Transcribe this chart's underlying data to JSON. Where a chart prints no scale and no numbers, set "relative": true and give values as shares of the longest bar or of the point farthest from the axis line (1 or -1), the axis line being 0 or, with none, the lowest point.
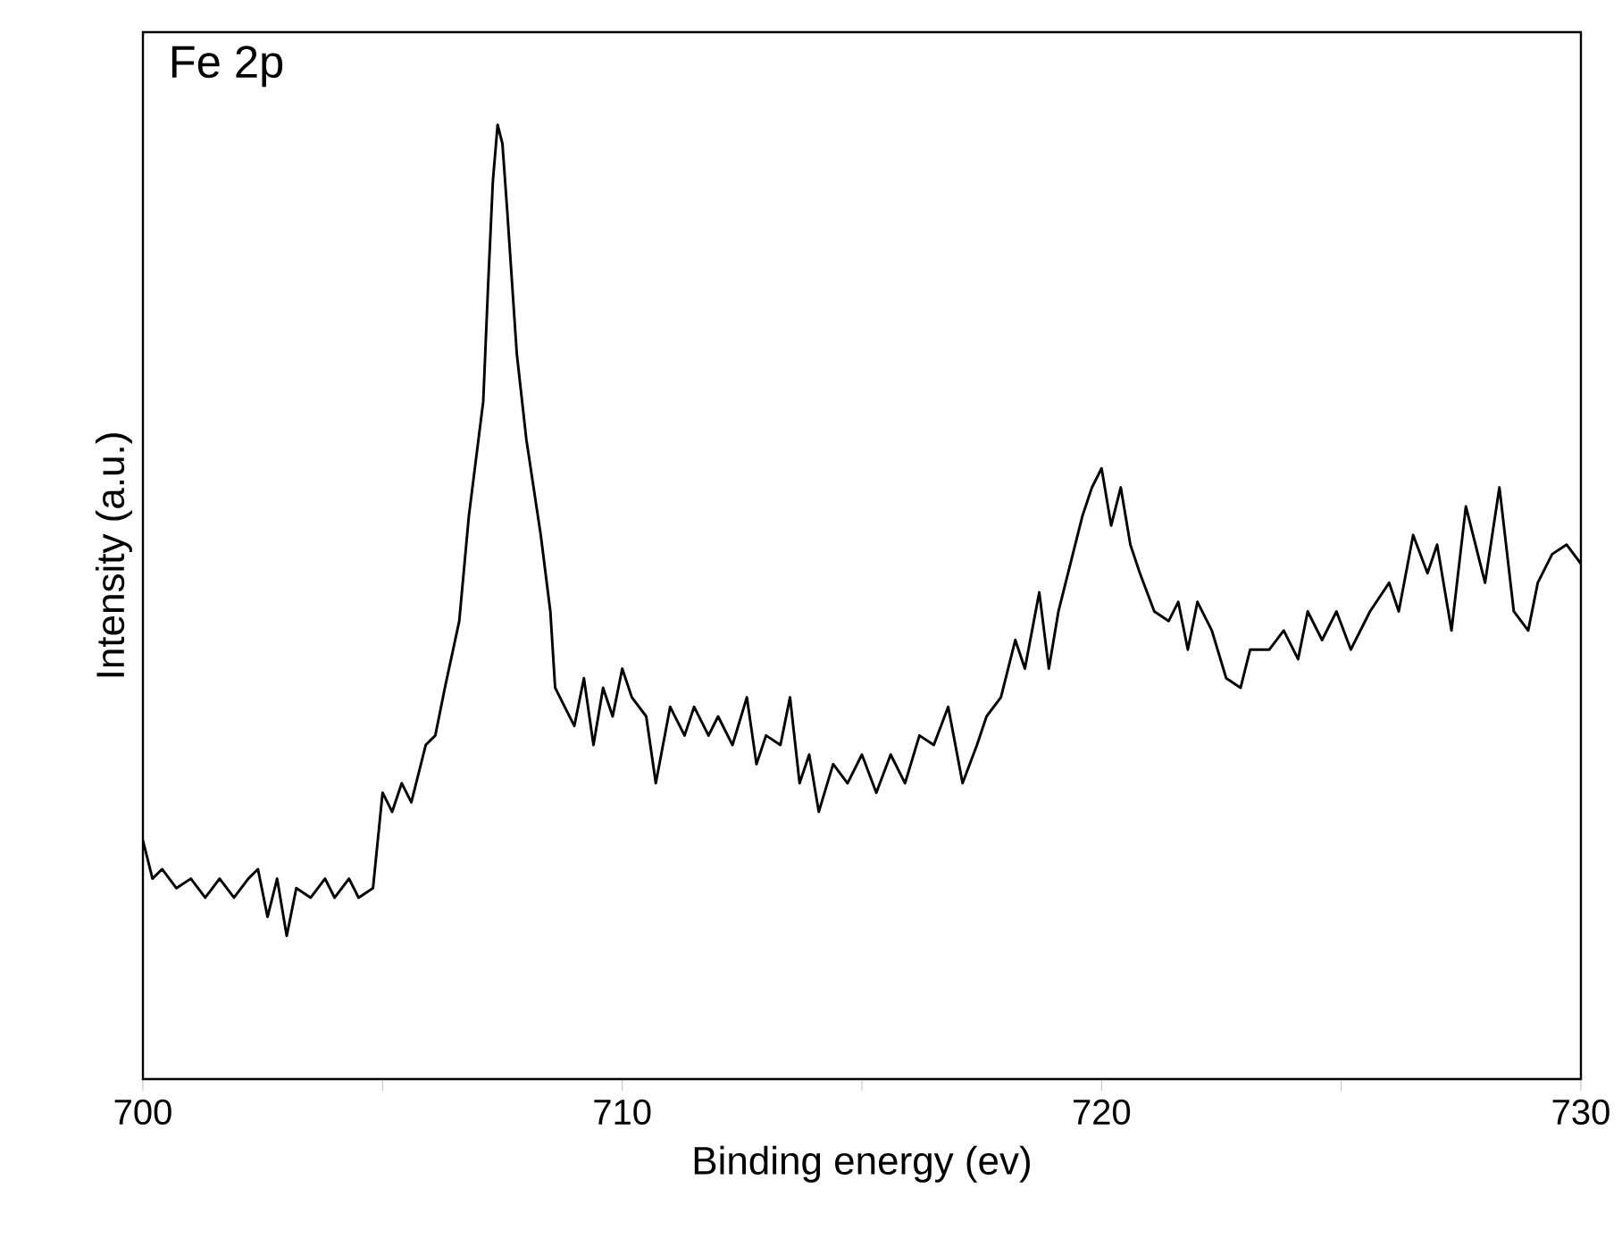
{
  "chart_data": {
    "type": "line",
    "relative": true,
    "xlabel": "Binding energy (ev)",
    "ylabel": "Intensity (a.u.)",
    "annotations": [
      "Fe 2p"
    ],
    "xlim": [
      700,
      730
    ],
    "xticks": [
      700,
      {
        "value": 705,
        "label": null
      },
      710,
      {
        "value": 715,
        "label": null
      },
      720,
      {
        "value": 725,
        "label": null
      },
      730
    ],
    "grid": false,
    "marker": "none",
    "line_style": "solid",
    "series": [
      {
        "color": "#000000",
        "x": [
          700.0,
          700.2,
          700.4,
          700.7,
          701.0,
          701.3,
          701.6,
          701.9,
          702.2,
          702.4,
          702.6,
          702.8,
          703.0,
          703.2,
          703.5,
          703.8,
          704.0,
          704.3,
          704.5,
          704.8,
          705.0,
          705.2,
          705.4,
          705.6,
          705.9,
          706.1,
          706.3,
          706.6,
          706.8,
          707.0,
          707.1,
          707.2,
          707.3,
          707.4,
          707.5,
          707.6,
          707.8,
          708.0,
          708.3,
          708.5,
          708.6,
          708.8,
          709.0,
          709.2,
          709.4,
          709.6,
          709.8,
          710.0,
          710.2,
          710.5,
          710.7,
          711.0,
          711.3,
          711.5,
          711.8,
          712.0,
          712.3,
          712.6,
          712.8,
          713.0,
          713.3,
          713.5,
          713.7,
          713.9,
          714.1,
          714.4,
          714.7,
          715.0,
          715.3,
          715.6,
          715.9,
          716.2,
          716.5,
          716.8,
          717.1,
          717.4,
          717.6,
          717.9,
          718.2,
          718.4,
          718.7,
          718.9,
          719.1,
          719.4,
          719.6,
          719.8,
          720.0,
          720.2,
          720.4,
          720.6,
          720.8,
          721.1,
          721.4,
          721.6,
          721.8,
          722.0,
          722.3,
          722.6,
          722.9,
          723.1,
          723.5,
          723.8,
          724.1,
          724.3,
          724.6,
          724.9,
          725.2,
          725.6,
          726.0,
          726.2,
          726.5,
          726.8,
          727.0,
          727.3,
          727.6,
          728.0,
          728.3,
          728.6,
          728.9,
          729.1,
          729.4,
          729.7,
          730.0
        ],
        "values": [
          0.25,
          0.21,
          0.22,
          0.2,
          0.21,
          0.19,
          0.21,
          0.19,
          0.21,
          0.22,
          0.17,
          0.21,
          0.15,
          0.2,
          0.19,
          0.21,
          0.19,
          0.21,
          0.19,
          0.2,
          0.3,
          0.28,
          0.31,
          0.29,
          0.35,
          0.36,
          0.41,
          0.48,
          0.59,
          0.67,
          0.71,
          0.83,
          0.94,
          1.0,
          0.98,
          0.91,
          0.76,
          0.67,
          0.57,
          0.49,
          0.41,
          0.39,
          0.37,
          0.42,
          0.35,
          0.41,
          0.38,
          0.43,
          0.4,
          0.38,
          0.31,
          0.39,
          0.36,
          0.39,
          0.36,
          0.38,
          0.35,
          0.4,
          0.33,
          0.36,
          0.35,
          0.4,
          0.31,
          0.34,
          0.28,
          0.33,
          0.31,
          0.34,
          0.3,
          0.34,
          0.31,
          0.36,
          0.35,
          0.39,
          0.31,
          0.35,
          0.38,
          0.4,
          0.46,
          0.43,
          0.51,
          0.43,
          0.49,
          0.55,
          0.59,
          0.62,
          0.64,
          0.58,
          0.62,
          0.56,
          0.53,
          0.49,
          0.48,
          0.5,
          0.45,
          0.5,
          0.47,
          0.42,
          0.41,
          0.45,
          0.45,
          0.47,
          0.44,
          0.49,
          0.46,
          0.49,
          0.45,
          0.49,
          0.52,
          0.49,
          0.57,
          0.53,
          0.56,
          0.47,
          0.6,
          0.52,
          0.62,
          0.49,
          0.47,
          0.52,
          0.55,
          0.56,
          0.54
        ]
      }
    ]
  }
}
